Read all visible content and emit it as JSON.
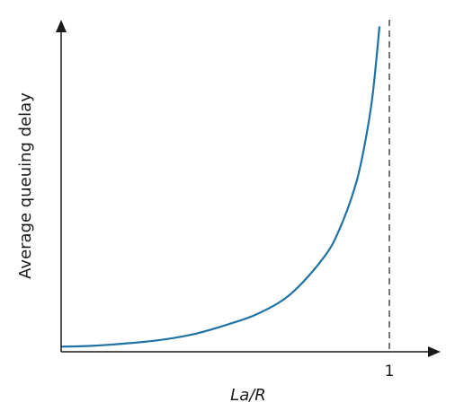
{
  "chart_data": {
    "type": "line",
    "title": "",
    "xlabel": "La/R",
    "ylabel": "Average queuing delay",
    "x_ticks": [
      "1"
    ],
    "xlim": [
      0,
      1.09
    ],
    "ylim": [
      0,
      1
    ],
    "grid": false,
    "legend": "none",
    "asymptote_x": 1,
    "colors": {
      "curve": "#1f72a4",
      "axis": "#1a1a1a"
    },
    "series": [
      {
        "x": [
          0,
          0.1,
          0.2,
          0.3,
          0.4,
          0.5,
          0.6,
          0.7,
          0.8,
          0.85,
          0.9,
          0.93,
          0.95,
          0.97
        ],
        "y": [
          0.01,
          0.013,
          0.02,
          0.03,
          0.047,
          0.075,
          0.11,
          0.17,
          0.28,
          0.37,
          0.51,
          0.65,
          0.78,
          0.98
        ]
      }
    ]
  }
}
